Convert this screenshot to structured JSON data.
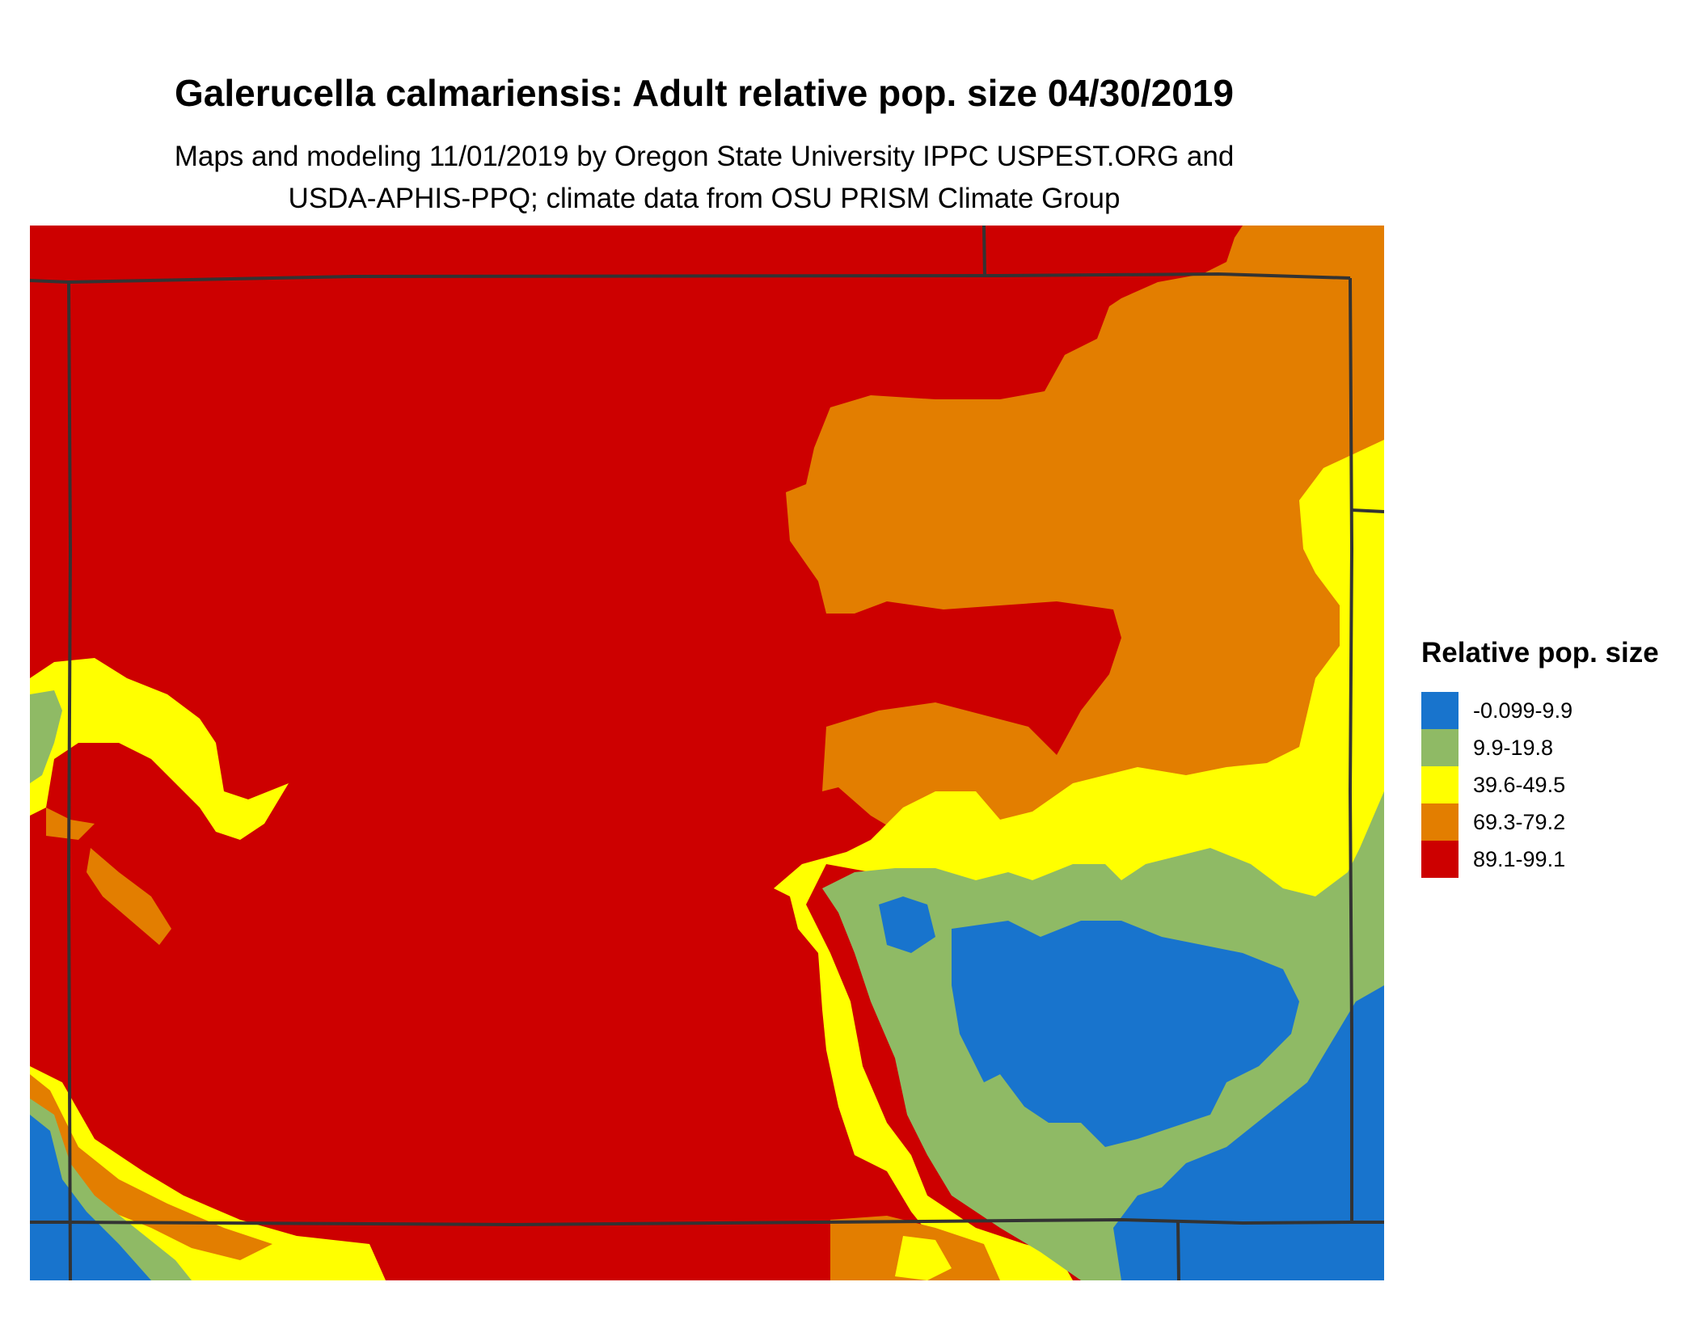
{
  "header": {
    "title": "Galerucella calmariensis: Adult relative pop. size 04/30/2019",
    "subtitle_line1": "Maps and modeling 11/01/2019 by Oregon State University IPPC USPEST.ORG and",
    "subtitle_line2": "USDA-APHIS-PPQ; climate data from OSU PRISM Climate Group"
  },
  "legend": {
    "title": "Relative pop. size",
    "items": [
      {
        "label": "-0.099-9.9",
        "color": "#1874CD"
      },
      {
        "label": "9.9-19.8",
        "color": "#8FBA65"
      },
      {
        "label": "39.6-49.5",
        "color": "#FFFF00"
      },
      {
        "label": "69.3-79.2",
        "color": "#E37E00"
      },
      {
        "label": "89.1-99.1",
        "color": "#CD0000"
      }
    ]
  },
  "map": {
    "colors": {
      "very_low": "#1874CD",
      "low": "#8FBA65",
      "medium": "#FFFF00",
      "high": "#E37E00",
      "very_high": "#CD0000",
      "border": "#333333"
    }
  }
}
